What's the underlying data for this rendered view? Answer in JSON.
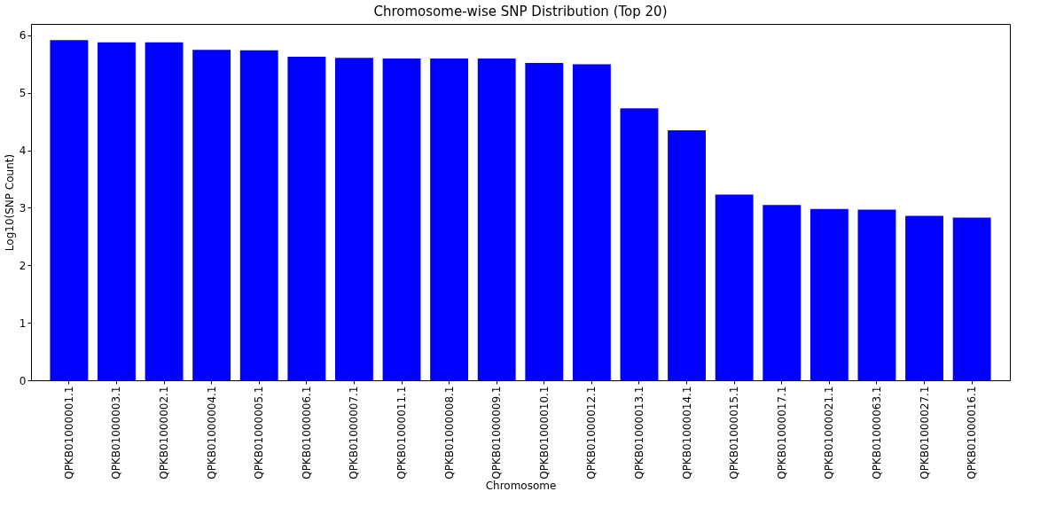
{
  "chart_data": {
    "type": "bar",
    "title": "Chromosome-wise SNP Distribution (Top 20)",
    "xlabel": "Chromosome",
    "ylabel": "Log10(SNP Count)",
    "categories": [
      "QPKB01000001.1",
      "QPKB01000003.1",
      "QPKB01000002.1",
      "QPKB01000004.1",
      "QPKB01000005.1",
      "QPKB01000006.1",
      "QPKB01000007.1",
      "QPKB01000011.1",
      "QPKB01000008.1",
      "QPKB01000009.1",
      "QPKB01000010.1",
      "QPKB01000012.1",
      "QPKB01000013.1",
      "QPKB01000014.1",
      "QPKB01000015.1",
      "QPKB01000017.1",
      "QPKB01000021.1",
      "QPKB01000063.1",
      "QPKB01000027.1",
      "QPKB01000016.1"
    ],
    "values": [
      5.92,
      5.88,
      5.88,
      5.75,
      5.74,
      5.63,
      5.61,
      5.6,
      5.6,
      5.6,
      5.52,
      5.5,
      4.73,
      4.35,
      3.23,
      3.05,
      2.98,
      2.97,
      2.86,
      2.83
    ],
    "color": "#0000ff",
    "ylim": [
      0,
      6.2
    ],
    "yticks": [
      0,
      1,
      2,
      3,
      4,
      5,
      6
    ],
    "grid": false
  }
}
